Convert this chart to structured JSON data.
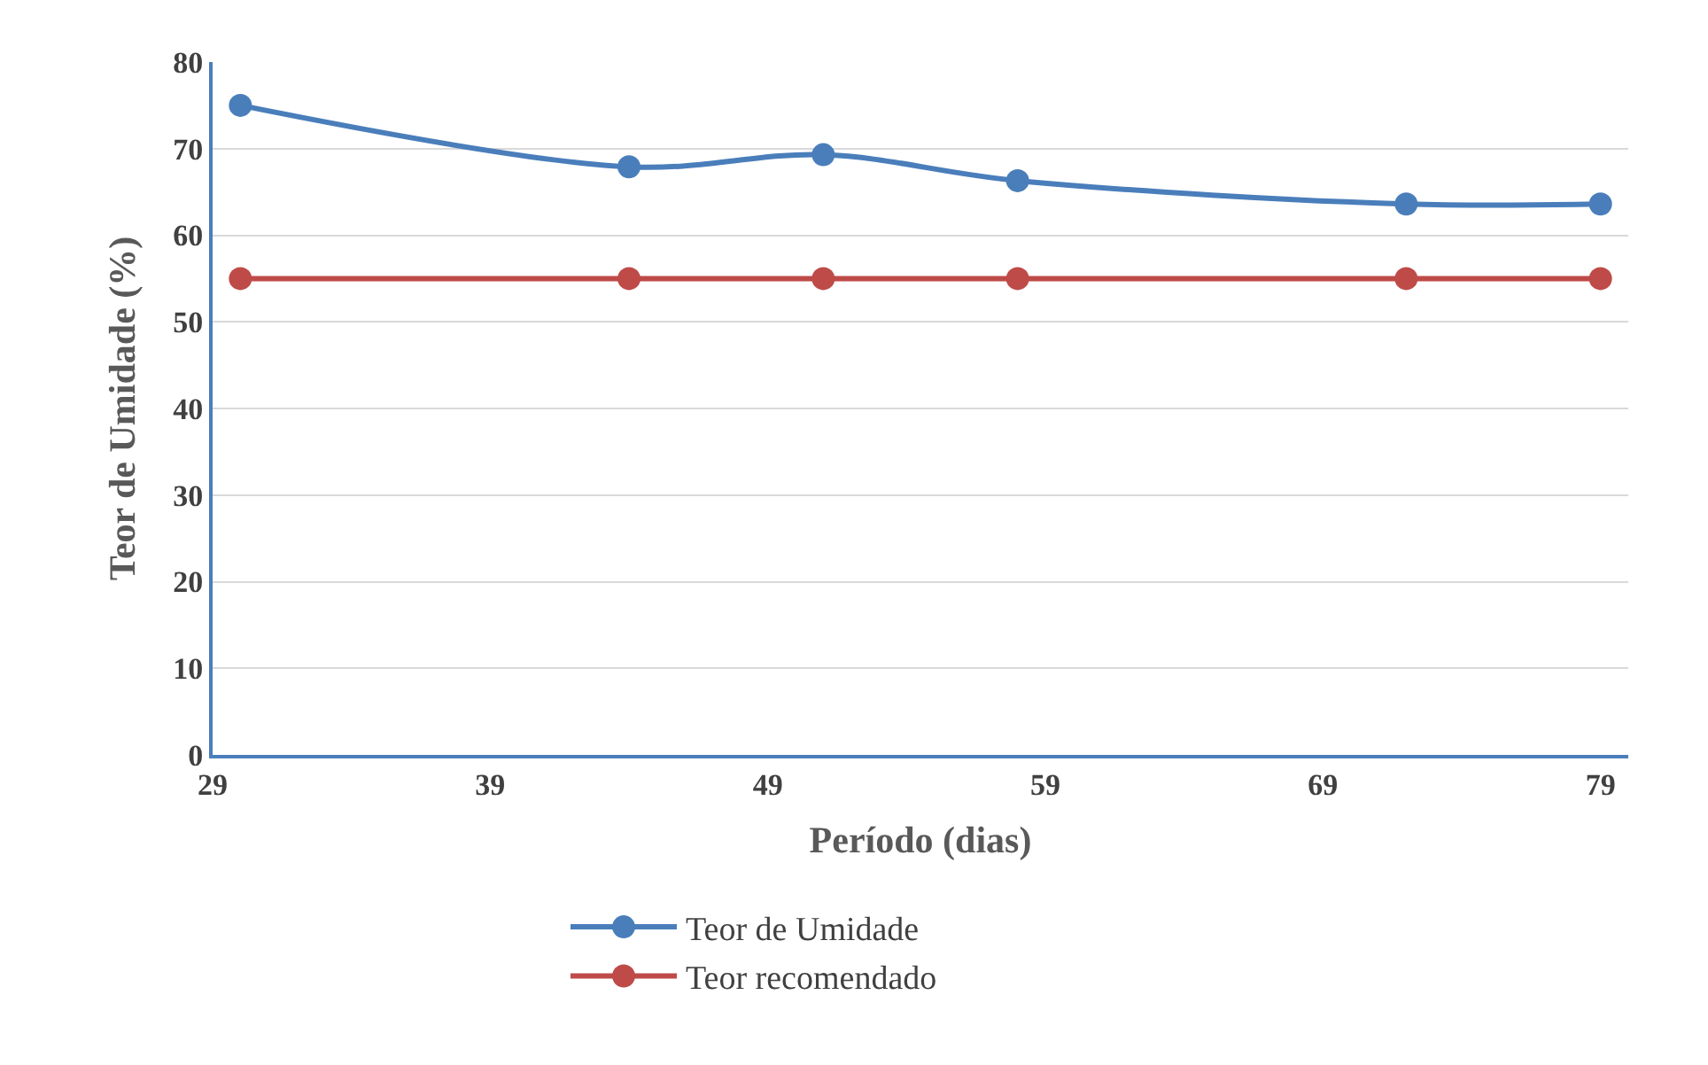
{
  "chart_data": {
    "type": "line",
    "xlabel": "Período (dias)",
    "ylabel": "Teor de Umidade (%)",
    "x": [
      30,
      44,
      51,
      58,
      72,
      79
    ],
    "series": [
      {
        "name": "Teor de Umidade",
        "color": "#4a7ebb",
        "values": [
          75,
          67.9,
          69.3,
          66.3,
          63.6,
          63.6
        ]
      },
      {
        "name": "Teor recomendado",
        "color": "#be4b48",
        "values": [
          55,
          55,
          55,
          55,
          55,
          55
        ]
      }
    ],
    "xlim": [
      29,
      80
    ],
    "xticks": [
      29,
      39,
      49,
      59,
      69,
      79
    ],
    "ylim": [
      0,
      80
    ],
    "yticks": [
      0,
      10,
      20,
      30,
      40,
      50,
      60,
      70,
      80
    ],
    "grid": "y",
    "legend": "bottom",
    "marker": "circle",
    "line_style": "solid"
  }
}
